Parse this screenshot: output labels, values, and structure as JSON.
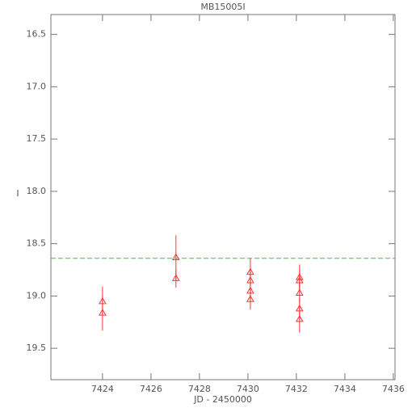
{
  "chart_data": {
    "type": "scatter",
    "title": "MB15005I",
    "x_label": "JD - 2450000",
    "y_label": "I",
    "xlim": [
      7421.87,
      7436.07
    ],
    "ylim": [
      16.31,
      19.8
    ],
    "y_inverted": true,
    "xticks": [
      7424,
      7426,
      7428,
      7430,
      7432,
      7434,
      7436
    ],
    "yticks": [
      {
        "value": 16.5,
        "label": "16.5"
      },
      {
        "value": 17.0,
        "label": "17.0"
      },
      {
        "value": 17.5,
        "label": "17.5"
      },
      {
        "value": 18.0,
        "label": "18.0"
      },
      {
        "value": 18.5,
        "label": "18.5"
      },
      {
        "value": 19.0,
        "label": "19.0"
      },
      {
        "value": 19.5,
        "label": "19.5"
      }
    ],
    "reference_line": {
      "value": 18.64,
      "color": "#33cc33"
    },
    "series": [
      {
        "color": "#ff3333",
        "marker": "triangle",
        "x": [
          7424.0,
          7424.0,
          7427.03,
          7427.03,
          7430.1,
          7430.1,
          7430.1,
          7430.1,
          7432.13,
          7432.13,
          7432.13,
          7432.13,
          7432.13
        ],
        "values": [
          19.05,
          19.16,
          18.63,
          18.83,
          18.77,
          18.85,
          18.95,
          19.03,
          18.82,
          18.85,
          18.97,
          19.12,
          19.22
        ],
        "errors": [
          0.14,
          0.17,
          0.21,
          0.09,
          0.13,
          0.1,
          0.1,
          0.1,
          0.12,
          0.1,
          0.1,
          0.1,
          0.13
        ]
      }
    ]
  }
}
